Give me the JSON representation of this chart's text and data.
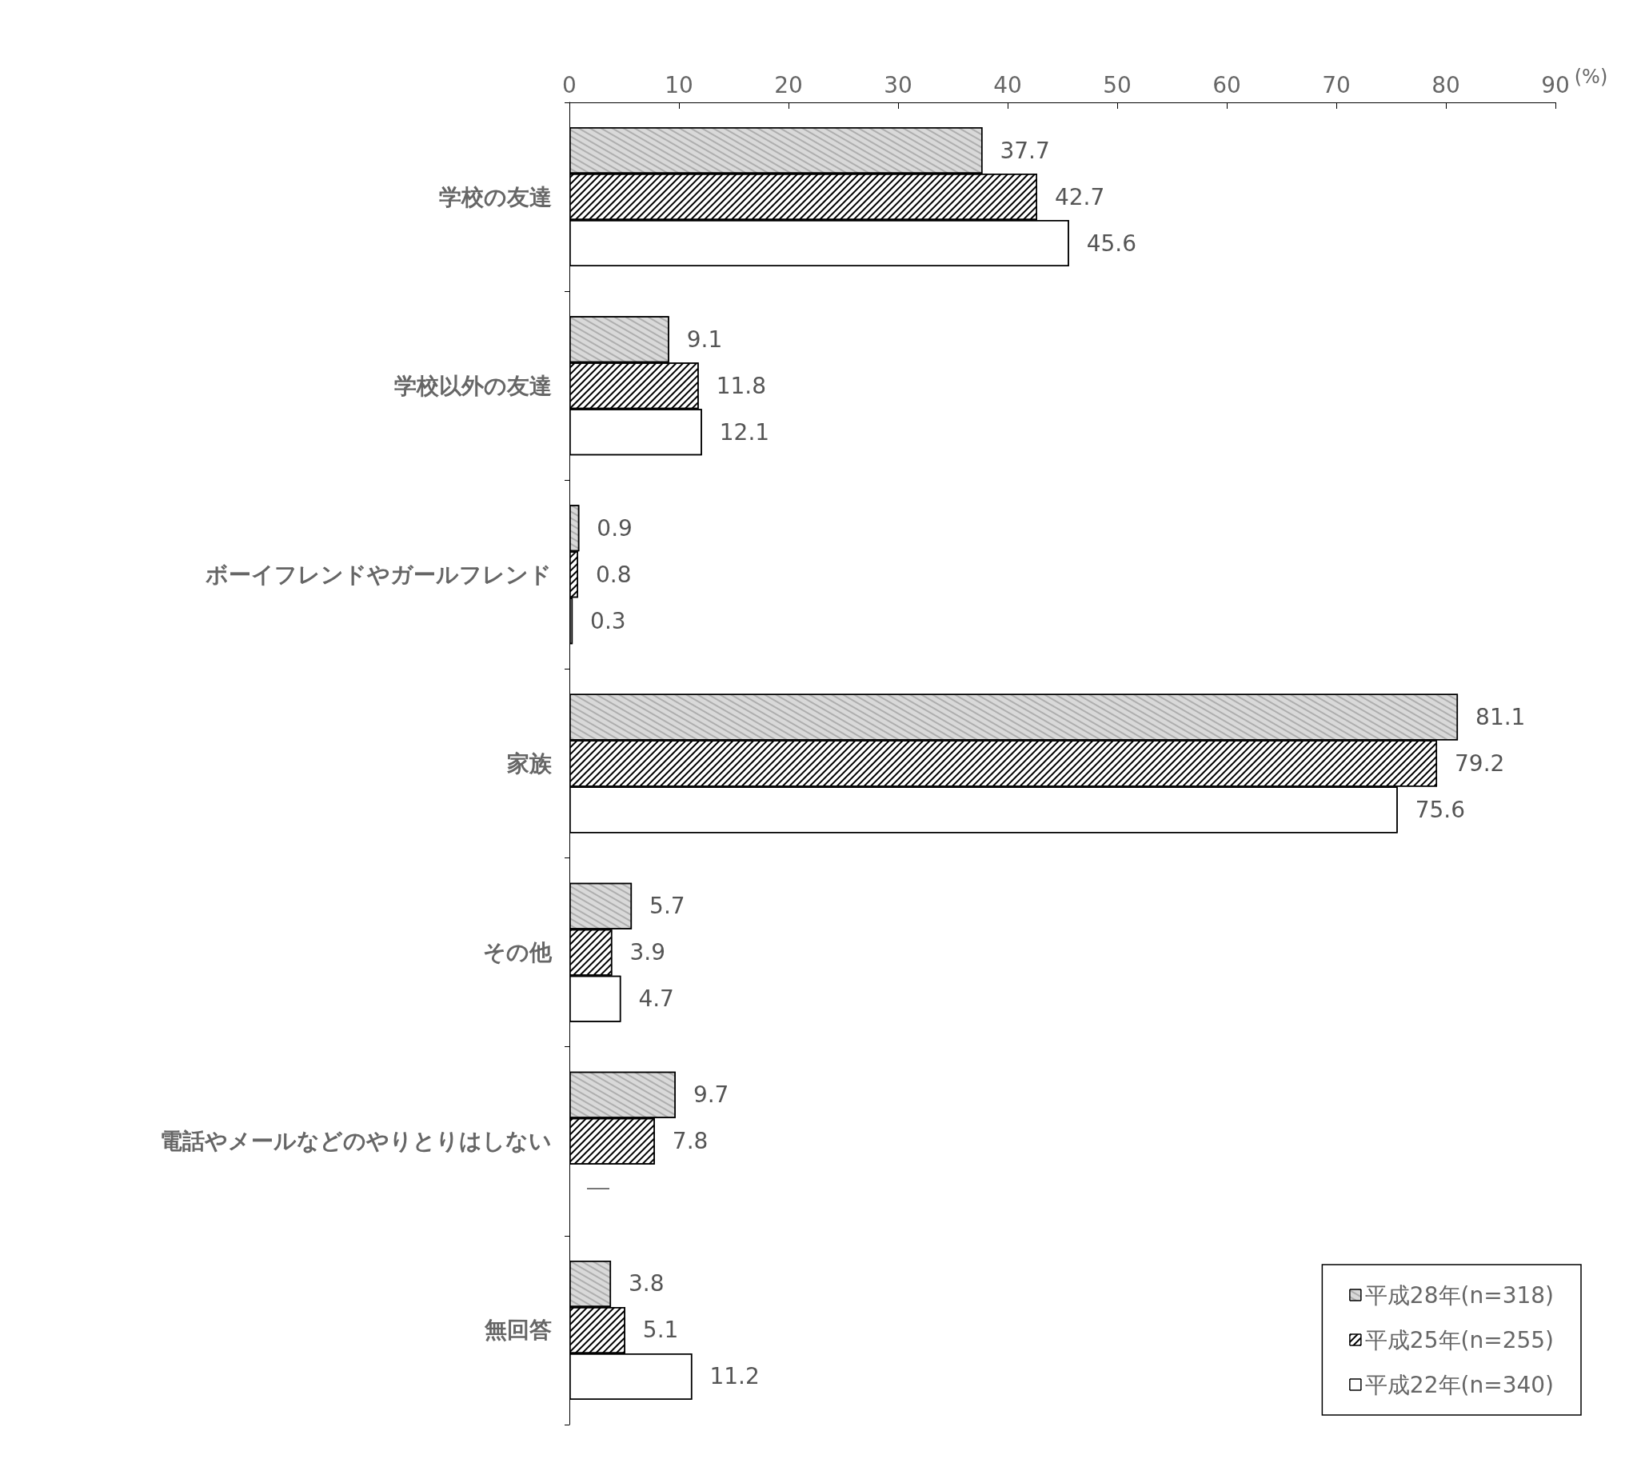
{
  "chart_data": {
    "type": "bar",
    "orientation": "horizontal",
    "xlabel": "(%)",
    "categories": [
      "学校の友達",
      "学校以外の友達",
      "ボーイフレンドやガールフレンド",
      "家族",
      "その他",
      "電話やメールなどのやりとりはしない",
      "無回答"
    ],
    "series": [
      {
        "name": "平成28年(n=318)",
        "color": "#d9d9d9",
        "values": [
          37.7,
          9.1,
          0.9,
          81.1,
          5.7,
          9.7,
          3.8
        ],
        "value_labels": [
          "37.7",
          "9.1",
          "0.9",
          "81.1",
          "5.7",
          "9.7",
          "3.8"
        ]
      },
      {
        "name": "平成25年(n=255)",
        "color": "#ffffff",
        "values": [
          42.7,
          11.8,
          0.8,
          79.2,
          3.9,
          7.8,
          5.1
        ],
        "value_labels": [
          "42.7",
          "11.8",
          "0.8",
          "79.2",
          "3.9",
          "7.8",
          "5.1"
        ]
      },
      {
        "name": "平成22年(n=340)",
        "color": "#ffffff",
        "values": [
          45.6,
          12.1,
          0.3,
          75.6,
          4.7,
          null,
          11.2
        ],
        "value_labels": [
          "45.6",
          "12.1",
          "0.3",
          "75.6",
          "4.7",
          "―",
          "11.2"
        ]
      }
    ],
    "xlim": [
      0,
      90
    ],
    "xticks": [
      0,
      10,
      20,
      30,
      40,
      50,
      60,
      70,
      80,
      90
    ],
    "grid": false,
    "legend": "bottom right"
  }
}
